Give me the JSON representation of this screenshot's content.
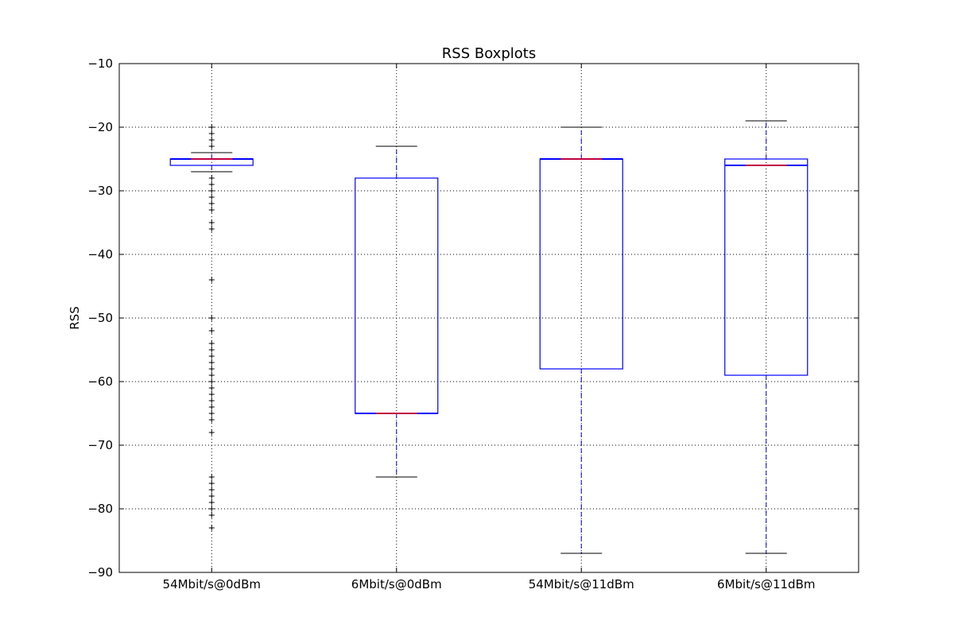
{
  "chart_data": {
    "type": "boxplot",
    "title": "RSS Boxplots",
    "xlabel": "",
    "ylabel": "RSS",
    "ylim": [
      -90,
      -10
    ],
    "yticks": [
      -90,
      -80,
      -70,
      -60,
      -50,
      -40,
      -30,
      -20,
      -10
    ],
    "grid": true,
    "categories": [
      "54Mbit/s@0dBm",
      "6Mbit/s@0dBm",
      "54Mbit/s@11dBm",
      "6Mbit/s@11dBm"
    ],
    "boxes": [
      {
        "category": "54Mbit/s@0dBm",
        "whisker_low": -27,
        "q1": -26,
        "median": -25,
        "q3": -25,
        "whisker_high": -24,
        "outliers": [
          -20,
          -21,
          -22,
          -23,
          -28,
          -29,
          -30,
          -31,
          -32,
          -33,
          -35,
          -36,
          -44,
          -50,
          -52,
          -54,
          -55,
          -56,
          -57,
          -58,
          -59,
          -60,
          -61,
          -62,
          -63,
          -64,
          -65,
          -66,
          -68,
          -75,
          -76,
          -77,
          -78,
          -79,
          -80,
          -81,
          -83
        ]
      },
      {
        "category": "6Mbit/s@0dBm",
        "whisker_low": -75,
        "q1": -65,
        "median": -65,
        "q3": -28,
        "whisker_high": -23,
        "outliers": []
      },
      {
        "category": "54Mbit/s@11dBm",
        "whisker_low": -87,
        "q1": -58,
        "median": -25,
        "q3": -25,
        "whisker_high": -20,
        "outliers": []
      },
      {
        "category": "6Mbit/s@11dBm",
        "whisker_low": -87,
        "q1": -59,
        "median": -26,
        "q3": -25,
        "whisker_high": -19,
        "outliers": []
      }
    ],
    "colors": {
      "box": "#0000ff",
      "median": "#ff0000",
      "whisker": "#0000ff",
      "cap": "#000000",
      "outlier": "#000000",
      "grid": "#000000"
    }
  }
}
